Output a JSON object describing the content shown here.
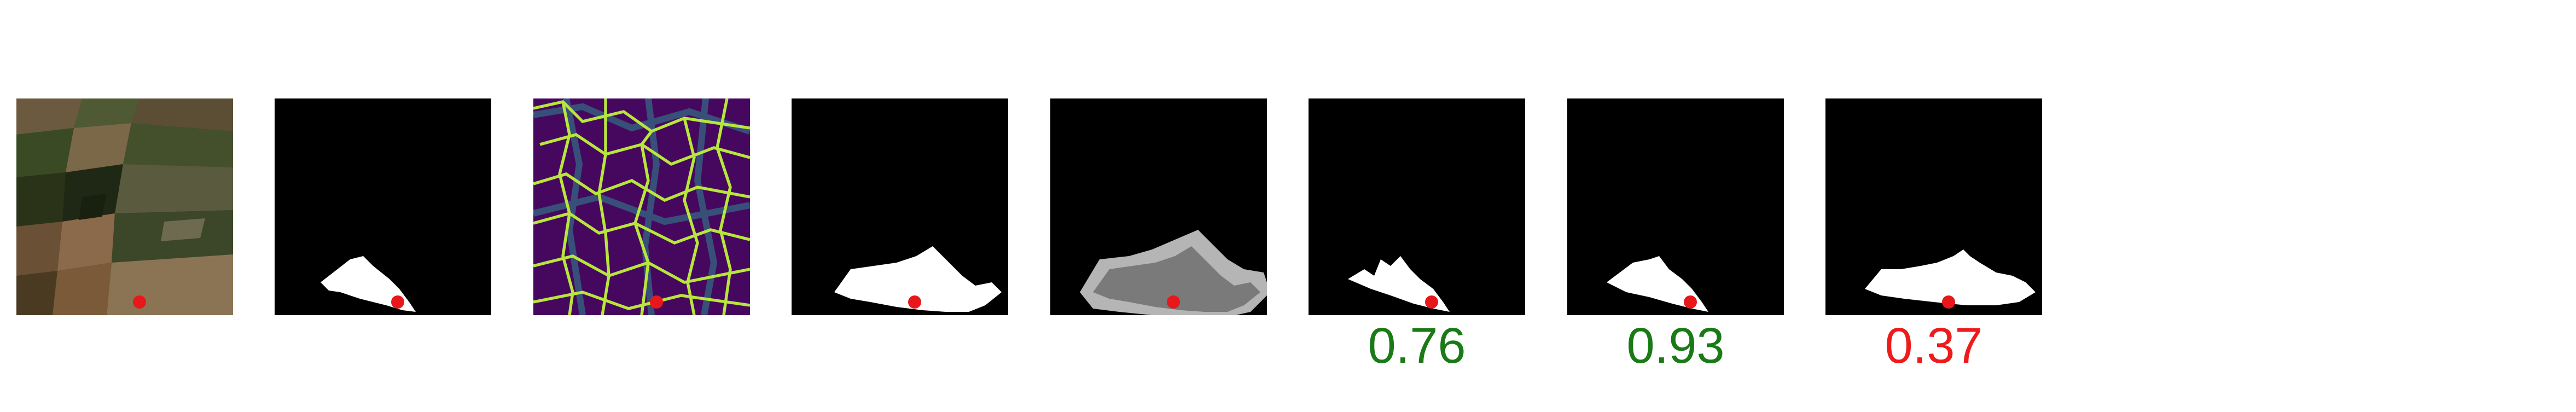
{
  "colors": {
    "background": "#ffffff",
    "mask_background": "#000000",
    "mask_foreground": "#ffffff",
    "uncertain_band": "#b5b5b5",
    "uncertain_core": "#7a7a7a",
    "point_marker": "#e8171b",
    "score_good": "#1a7a16",
    "score_bad": "#ee1b1b",
    "edge_map_bg": "#46085f",
    "edge_map_line": "#b8e63c"
  },
  "panels": [
    {
      "kind": "satellite-image",
      "icon": "satellite-image"
    },
    {
      "kind": "ground-truth-mask",
      "icon": "binary-mask"
    },
    {
      "kind": "boundary-probability-map",
      "icon": "edge-heatmap"
    },
    {
      "kind": "input-mask",
      "icon": "binary-mask"
    },
    {
      "kind": "uncertainty-mask",
      "icon": "binary-mask"
    },
    {
      "kind": "prediction-mask",
      "icon": "binary-mask"
    },
    {
      "kind": "prediction-mask",
      "icon": "binary-mask"
    },
    {
      "kind": "prediction-mask",
      "icon": "binary-mask"
    }
  ],
  "scores": [
    {
      "value": "0.76",
      "status": "good"
    },
    {
      "value": "0.93",
      "status": "good"
    },
    {
      "value": "0.37",
      "status": "bad"
    }
  ]
}
